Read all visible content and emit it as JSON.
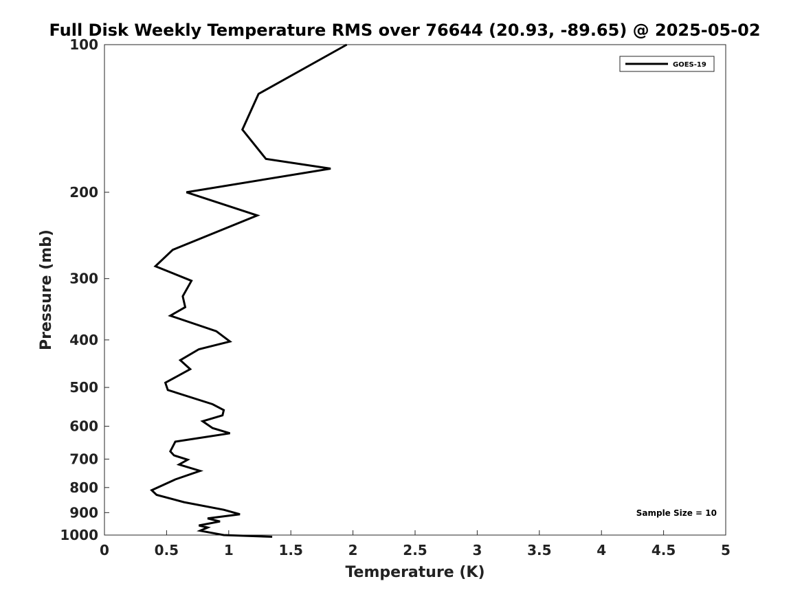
{
  "chart_data": {
    "type": "line",
    "title": "Full Disk Weekly Temperature RMS over 76644 (20.93, -89.65) @ 2025-05-02",
    "xlabel": "Temperature (K)",
    "ylabel": "Pressure (mb)",
    "xlim": [
      0,
      5
    ],
    "ylim": [
      1000,
      100
    ],
    "y_scale": "log",
    "x_ticks": [
      {
        "value": 0,
        "label": "0"
      },
      {
        "value": 0.5,
        "label": "0.5"
      },
      {
        "value": 1,
        "label": "1"
      },
      {
        "value": 1.5,
        "label": "1.5"
      },
      {
        "value": 2,
        "label": "2"
      },
      {
        "value": 2.5,
        "label": "2.5"
      },
      {
        "value": 3,
        "label": "3"
      },
      {
        "value": 3.5,
        "label": "3.5"
      },
      {
        "value": 4,
        "label": "4"
      },
      {
        "value": 4.5,
        "label": "4.5"
      },
      {
        "value": 5,
        "label": "5"
      }
    ],
    "y_ticks": [
      {
        "value": 100,
        "label": "100"
      },
      {
        "value": 200,
        "label": "200"
      },
      {
        "value": 300,
        "label": "300"
      },
      {
        "value": 400,
        "label": "400"
      },
      {
        "value": 500,
        "label": "500"
      },
      {
        "value": 600,
        "label": "600"
      },
      {
        "value": 700,
        "label": "700"
      },
      {
        "value": 800,
        "label": "800"
      },
      {
        "value": 900,
        "label": "900"
      },
      {
        "value": 1000,
        "label": "1000"
      }
    ],
    "grid": false,
    "legend_position": "top-right",
    "series": [
      {
        "name": "GOES-19",
        "color": "#000000",
        "points": [
          [
            1.95,
            100
          ],
          [
            1.24,
            126
          ],
          [
            1.11,
            149
          ],
          [
            1.3,
            171
          ],
          [
            1.82,
            179
          ],
          [
            0.66,
            200
          ],
          [
            1.23,
            223
          ],
          [
            0.55,
            262
          ],
          [
            0.41,
            283
          ],
          [
            0.7,
            303
          ],
          [
            0.63,
            326
          ],
          [
            0.65,
            343
          ],
          [
            0.53,
            357
          ],
          [
            0.9,
            384
          ],
          [
            1.01,
            403
          ],
          [
            0.76,
            418
          ],
          [
            0.61,
            440
          ],
          [
            0.69,
            459
          ],
          [
            0.49,
            489
          ],
          [
            0.51,
            506
          ],
          [
            0.87,
            541
          ],
          [
            0.96,
            556
          ],
          [
            0.95,
            570
          ],
          [
            0.79,
            586
          ],
          [
            0.87,
            605
          ],
          [
            1.01,
            620
          ],
          [
            0.57,
            645
          ],
          [
            0.53,
            675
          ],
          [
            0.56,
            688
          ],
          [
            0.67,
            702
          ],
          [
            0.6,
            718
          ],
          [
            0.77,
            740
          ],
          [
            0.57,
            770
          ],
          [
            0.38,
            810
          ],
          [
            0.42,
            828
          ],
          [
            0.64,
            857
          ],
          [
            0.96,
            888
          ],
          [
            1.09,
            907
          ],
          [
            0.83,
            925
          ],
          [
            0.93,
            938
          ],
          [
            0.76,
            956
          ],
          [
            0.83,
            965
          ],
          [
            0.77,
            980
          ],
          [
            0.96,
            1000
          ],
          [
            1.35,
            1008
          ]
        ]
      }
    ],
    "annotations": [
      {
        "text": "Sample Size = 10",
        "position": "bottom-right"
      }
    ]
  }
}
